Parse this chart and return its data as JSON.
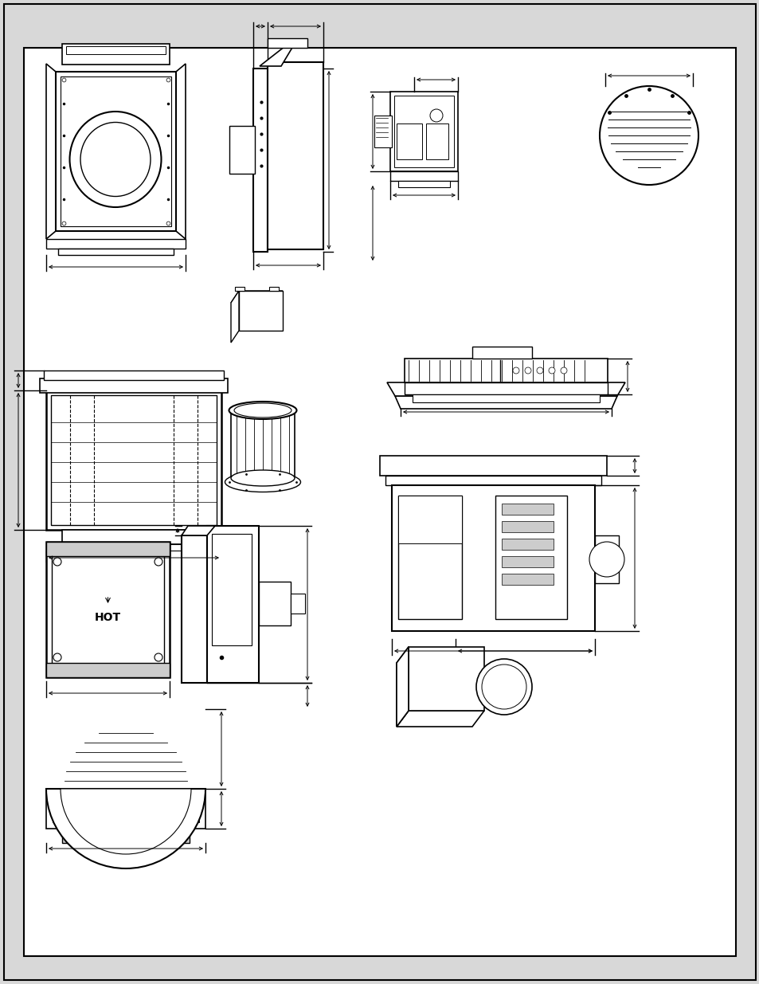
{
  "background_color": "#ffffff",
  "border_color": "#000000",
  "line_color": "#000000",
  "gray_color": "#aaaaaa",
  "light_gray": "#cccccc",
  "page_bg": "#d8d8d8",
  "fig_width": 9.54,
  "fig_height": 12.35
}
